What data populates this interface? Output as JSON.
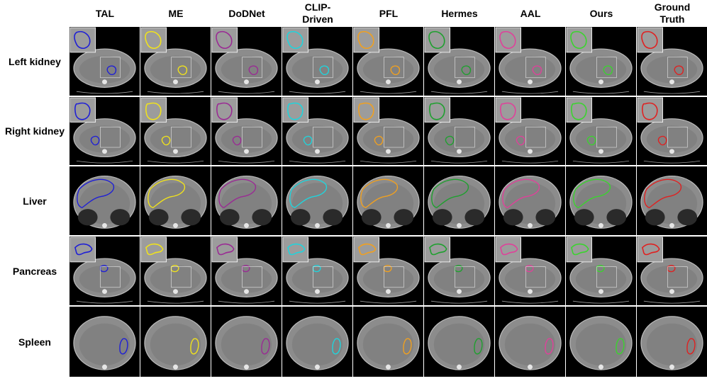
{
  "columns": [
    {
      "label": "TAL",
      "color": "#1f1fd6"
    },
    {
      "label": "ME",
      "color": "#f0e21c"
    },
    {
      "label": "DoDNet",
      "color": "#9a2a94"
    },
    {
      "label": "CLIP-\nDriven",
      "color": "#20d4dc"
    },
    {
      "label": "PFL",
      "color": "#f0a020"
    },
    {
      "label": "Hermes",
      "color": "#1ea02e"
    },
    {
      "label": "AAL",
      "color": "#e0409a"
    },
    {
      "label": "Ours",
      "color": "#3ad42e"
    },
    {
      "label": "Ground\nTruth",
      "color": "#e02020"
    }
  ],
  "rows": [
    {
      "label": "Left kidney",
      "organ": "left-kidney"
    },
    {
      "label": "Right kidney",
      "organ": "right-kidney"
    },
    {
      "label": "Liver",
      "organ": "liver"
    },
    {
      "label": "Pancreas",
      "organ": "pancreas"
    },
    {
      "label": "Spleen",
      "organ": "spleen"
    }
  ]
}
